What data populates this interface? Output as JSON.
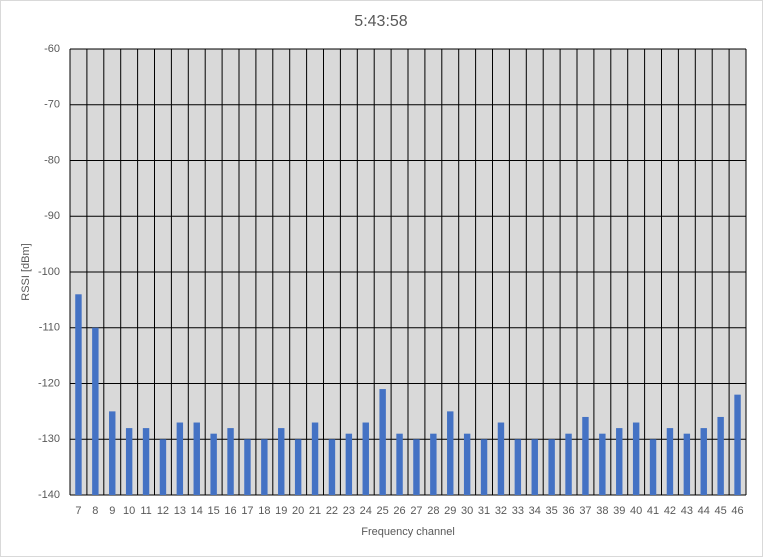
{
  "chart_data": {
    "type": "bar",
    "title": "5:43:58",
    "x_label": "Frequency channel",
    "y_label": "RSSI [dBm]",
    "categories": [
      7,
      8,
      9,
      10,
      11,
      12,
      13,
      14,
      15,
      16,
      17,
      18,
      19,
      20,
      21,
      22,
      23,
      24,
      25,
      26,
      27,
      28,
      29,
      30,
      31,
      32,
      33,
      34,
      35,
      36,
      37,
      38,
      39,
      40,
      41,
      42,
      43,
      44,
      45,
      46
    ],
    "values": [
      -104,
      -110,
      -125,
      -128,
      -128,
      -130,
      -127,
      -127,
      -129,
      -128,
      -130,
      -130,
      -128,
      -130,
      -127,
      -130,
      -129,
      -127,
      -121,
      -129,
      -130,
      -129,
      -125,
      -129,
      -130,
      -127,
      -130,
      -130,
      -130,
      -129,
      -126,
      -129,
      -128,
      -127,
      -130,
      -128,
      -129,
      -128,
      -126,
      -122
    ],
    "color": "#4472c4",
    "ylim": [
      -140,
      -60
    ],
    "yticks": [
      -140,
      -130,
      -120,
      -110,
      -100,
      -90,
      -80,
      -70,
      -60
    ],
    "grid": true
  }
}
